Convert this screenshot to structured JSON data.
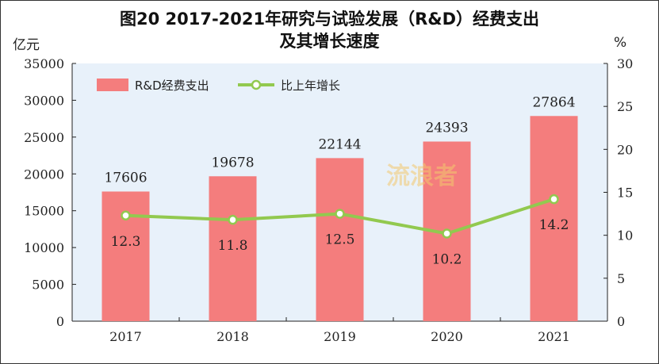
{
  "header": {
    "title_line1": "图20 2017-2021年研究与试验发展（R&D）经费支出",
    "title_line2": "及其增长速度"
  },
  "watermark": "流浪者",
  "chart_data": {
    "type": "bar",
    "categories": [
      "2017",
      "2018",
      "2019",
      "2020",
      "2021"
    ],
    "series": [
      {
        "name": "R&D经费支出",
        "type": "bar",
        "axis": "left",
        "values": [
          17606,
          19678,
          22144,
          24393,
          27864
        ],
        "labels": [
          "17606",
          "19678",
          "22144",
          "24393",
          "27864"
        ],
        "color": "#f47d7d"
      },
      {
        "name": "比上年增长",
        "type": "line",
        "axis": "right",
        "values": [
          12.3,
          11.8,
          12.5,
          10.2,
          14.2
        ],
        "labels": [
          "12.3",
          "11.8",
          "12.5",
          "10.2",
          "14.2"
        ],
        "color": "#92c94f"
      }
    ],
    "y_left": {
      "label": "亿元",
      "min": 0,
      "max": 35000,
      "ticks": [
        "0",
        "5000",
        "10000",
        "15000",
        "20000",
        "25000",
        "30000",
        "35000"
      ]
    },
    "y_right": {
      "label": "%",
      "min": 0,
      "max": 30,
      "ticks": [
        "0",
        "5",
        "10",
        "15",
        "20",
        "25",
        "30"
      ]
    },
    "legend": "top-left",
    "grid": false,
    "plot_bg": "#e8f1fa"
  }
}
